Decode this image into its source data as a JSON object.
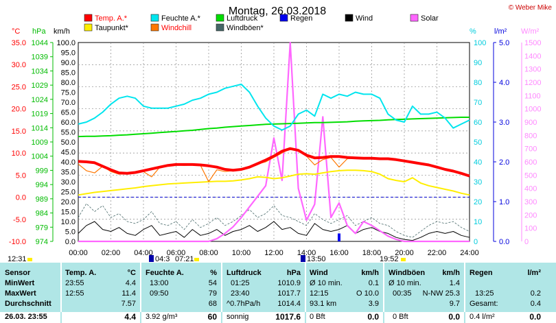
{
  "header": {
    "title": "Montag, 26.03.2018",
    "credit": "© Weber Mike"
  },
  "legend": [
    {
      "label": "Temp. A.*",
      "color": "#ff0000"
    },
    {
      "label": "Feuchte A.*",
      "color": "#00e5ee"
    },
    {
      "label": "Luftdruck",
      "color": "#00dd00"
    },
    {
      "label": "Regen",
      "color": "#0000ee"
    },
    {
      "label": "Wind",
      "color": "#000000"
    },
    {
      "label": "Solar",
      "color": "#ff66ff"
    },
    {
      "label": "Taupunkt*",
      "color": "#ffee00"
    },
    {
      "label": "Windchill",
      "color": "#ff7700"
    },
    {
      "label": "Windböen*",
      "color": "#446666"
    }
  ],
  "axes": {
    "temp_unit": "°C",
    "pressure_unit": "hPa",
    "wind_unit": "km/h",
    "humidity_unit": "%",
    "rain_unit": "l/m²",
    "solar_unit": "W/m²",
    "temp_ticks": [
      "35.0",
      "30.0",
      "25.0",
      "20.0",
      "15.0",
      "10.0",
      "5.0",
      "0.0",
      "-5.0",
      "-10.0"
    ],
    "pressure_ticks": [
      "1044",
      "1039",
      "1034",
      "1029",
      "1024",
      "1019",
      "1014",
      "1009",
      "1004",
      "999",
      "994",
      "989",
      "984",
      "979",
      "974"
    ],
    "wind_ticks": [
      "100.0",
      "95.0",
      "90.0",
      "85.0",
      "80.0",
      "75.0",
      "70.0",
      "65.0",
      "60.0",
      "55.0",
      "50.0",
      "45.0",
      "40.0",
      "35.0",
      "30.0",
      "25.0",
      "20.0",
      "15.0",
      "10.0",
      "5.0",
      "0.0"
    ],
    "humidity_ticks": [
      "100",
      "90",
      "80",
      "70",
      "60",
      "50",
      "40",
      "30",
      "20",
      "10",
      "0"
    ],
    "rain_ticks": [
      "5.0",
      "4.0",
      "3.0",
      "2.0",
      "1.0",
      "0.0"
    ],
    "solar_ticks": [
      "1500",
      "1400",
      "1300",
      "1200",
      "1100",
      "1000",
      "900",
      "800",
      "700",
      "600",
      "500",
      "400",
      "300",
      "200",
      "100",
      "0"
    ],
    "time_ticks": [
      "00:00",
      "02:00",
      "04:00",
      "06:00",
      "08:00",
      "10:00",
      "12:00",
      "14:00",
      "16:00",
      "18:00",
      "20:00",
      "22:00",
      "24:00"
    ]
  },
  "sun_bar": {
    "sunrise_left": "12:31",
    "m1": "04:3",
    "m2": "07:21",
    "m3": "13:50",
    "sunset": "19:52"
  },
  "chart_data": {
    "type": "line",
    "title": "Montag, 26.03.2018",
    "x_range": [
      "00:00",
      "24:00"
    ],
    "x_hours": [
      0,
      0.5,
      1,
      1.5,
      2,
      2.5,
      3,
      3.5,
      4,
      4.5,
      5,
      5.5,
      6,
      6.5,
      7,
      7.5,
      8,
      8.5,
      9,
      9.5,
      10,
      10.5,
      11,
      11.5,
      12,
      12.5,
      13,
      13.5,
      14,
      14.5,
      15,
      15.5,
      16,
      16.5,
      17,
      17.5,
      18,
      18.5,
      19,
      19.5,
      20,
      20.5,
      21,
      21.5,
      22,
      22.5,
      23,
      23.5,
      24
    ],
    "series": [
      {
        "name": "Temp. A.*",
        "unit": "°C",
        "axis": [
          -10,
          35
        ],
        "color": "#ff0000",
        "values": [
          8.1,
          8.0,
          7.8,
          7.0,
          6.2,
          5.5,
          5.4,
          5.6,
          6.0,
          6.4,
          6.8,
          7.2,
          7.4,
          7.4,
          7.4,
          7.3,
          7.1,
          6.8,
          6.3,
          6.1,
          6.3,
          6.8,
          7.6,
          8.4,
          9.3,
          10.4,
          11.0,
          10.6,
          9.5,
          8.9,
          9.0,
          9.2,
          9.2,
          9.0,
          8.9,
          8.8,
          8.8,
          8.7,
          8.7,
          8.5,
          8.2,
          7.9,
          7.6,
          7.3,
          6.8,
          6.3,
          5.9,
          5.4,
          4.8
        ]
      },
      {
        "name": "Windchill",
        "unit": "°C",
        "axis": [
          -10,
          35
        ],
        "color": "#ff7700",
        "values": [
          7.5,
          6.0,
          5.5,
          7.0,
          5.8,
          5.2,
          5.3,
          5.5,
          5.8,
          4.6,
          6.8,
          7.1,
          7.3,
          7.2,
          7.3,
          7.2,
          3.5,
          6.2,
          5.8,
          6.0,
          6.2,
          6.7,
          7.5,
          8.0,
          9.0,
          10.0,
          11.0,
          10.4,
          9.3,
          7.3,
          8.5,
          9.0,
          6.8,
          8.7,
          8.8,
          8.7,
          8.8,
          8.7,
          8.7,
          8.5,
          8.2,
          7.9,
          7.6,
          7.3,
          6.8,
          6.3,
          5.9,
          5.4,
          4.8
        ]
      },
      {
        "name": "Taupunkt*",
        "unit": "°C",
        "axis": [
          -10,
          35
        ],
        "color": "#ffee00",
        "values": [
          0.5,
          0.8,
          1.1,
          1.3,
          1.5,
          1.7,
          1.9,
          2.1,
          2.4,
          2.6,
          2.8,
          3.0,
          3.1,
          3.2,
          3.3,
          3.4,
          3.5,
          3.6,
          3.6,
          3.7,
          3.9,
          4.2,
          4.6,
          4.5,
          4.2,
          4.4,
          4.8,
          5.2,
          5.3,
          5.2,
          5.5,
          5.8,
          6.0,
          6.1,
          6.1,
          6.0,
          5.8,
          5.2,
          4.2,
          3.8,
          3.5,
          4.4,
          3.2,
          2.6,
          2.2,
          1.8,
          1.4,
          0.9,
          0.5
        ]
      },
      {
        "name": "Feuchte A.*",
        "unit": "%",
        "axis": [
          0,
          100
        ],
        "color": "#00e5ee",
        "values": [
          59,
          60,
          62,
          65,
          69,
          72,
          73,
          72,
          68,
          67,
          67,
          67,
          68,
          69,
          71,
          72,
          74,
          75,
          77,
          78,
          79,
          75,
          68,
          62,
          58,
          56,
          58,
          64,
          66,
          63,
          74,
          72,
          74,
          73,
          75,
          74,
          74,
          72,
          64,
          61,
          60,
          68,
          64,
          64,
          65,
          62,
          57,
          59,
          61
        ]
      },
      {
        "name": "Luftdruck",
        "unit": "hPa",
        "axis": [
          974,
          1044
        ],
        "color": "#00dd00",
        "values": [
          1010.9,
          1011.0,
          1011.0,
          1011.1,
          1011.2,
          1011.4,
          1011.5,
          1011.7,
          1011.9,
          1012.1,
          1012.3,
          1012.5,
          1012.7,
          1012.9,
          1013.1,
          1013.4,
          1013.7,
          1013.9,
          1014.2,
          1014.4,
          1014.6,
          1014.8,
          1015.0,
          1015.2,
          1015.3,
          1015.4,
          1015.5,
          1015.6,
          1015.7,
          1015.8,
          1015.8,
          1015.9,
          1016.0,
          1016.1,
          1016.3,
          1016.4,
          1016.5,
          1016.6,
          1016.8,
          1016.9,
          1017.0,
          1017.1,
          1017.2,
          1017.3,
          1017.4,
          1017.5,
          1017.6,
          1017.7,
          1017.7
        ]
      },
      {
        "name": "Wind",
        "unit": "km/h",
        "axis": [
          0,
          100
        ],
        "color": "#000000",
        "values": [
          4,
          8,
          10,
          6,
          5,
          7,
          4,
          3,
          6,
          8,
          3,
          4,
          5,
          2,
          6,
          3,
          4,
          6,
          3,
          5,
          6,
          8,
          5,
          7,
          10,
          6,
          7,
          4,
          3,
          9,
          6,
          5,
          6,
          8,
          4,
          6,
          7,
          5,
          4,
          2,
          1,
          0.5,
          2,
          4,
          5,
          4,
          5,
          3,
          2
        ]
      },
      {
        "name": "Windböen*",
        "unit": "km/h",
        "axis": [
          0,
          100
        ],
        "color": "#446666",
        "values": [
          12,
          19,
          15,
          18,
          12,
          14,
          10,
          9,
          11,
          15,
          9,
          8,
          10,
          6,
          11,
          7,
          9,
          12,
          8,
          10,
          13,
          16,
          12,
          14,
          18,
          13,
          12,
          10,
          8,
          14,
          11,
          9,
          11,
          13,
          8,
          10,
          12,
          9,
          8,
          5,
          3,
          2,
          5,
          8,
          10,
          9,
          10,
          7,
          5
        ]
      },
      {
        "name": "Solar",
        "unit": "W/m²",
        "axis": [
          0,
          1500
        ],
        "color": "#ff66ff",
        "values": [
          0,
          0,
          0,
          0,
          0,
          0,
          0,
          0,
          0,
          0,
          0,
          0,
          0,
          0,
          0,
          0,
          0,
          20,
          60,
          110,
          180,
          260,
          340,
          420,
          780,
          460,
          1520,
          400,
          160,
          280,
          940,
          180,
          290,
          120,
          60,
          150,
          120,
          80,
          40,
          15,
          0,
          0,
          0,
          0,
          0,
          0,
          0,
          0,
          0
        ]
      },
      {
        "name": "Regen",
        "unit": "l/m²",
        "axis": [
          0,
          5
        ],
        "color": "#0000ee",
        "values": [
          0,
          0,
          0,
          0,
          0,
          0,
          0,
          0,
          0,
          0,
          0,
          0,
          0,
          0,
          0,
          0,
          0,
          0,
          0,
          0,
          0,
          0,
          0,
          0,
          0,
          0,
          0,
          0,
          0,
          0,
          0,
          0,
          0.2,
          0,
          0,
          0,
          0,
          0,
          0,
          0,
          0,
          0,
          0,
          0,
          0,
          0,
          0,
          0,
          0
        ]
      }
    ]
  },
  "stats": {
    "rowlabels": {
      "header": "Sensor",
      "min": "MinWert",
      "max": "MaxWert",
      "avg": "Durchschnitt",
      "now": "26.03. 23:55"
    },
    "temp": {
      "title": "Temp. A.",
      "unit": "°C",
      "min_t": "23:55",
      "min_v": "4.4",
      "max_t": "12:55",
      "max_v": "11.4",
      "avg_v": "7.57",
      "now_v": "4.4"
    },
    "hum": {
      "title": "Feuchte A.",
      "unit": "%",
      "min_t": "13:00",
      "min_v": "54",
      "max_t": "09:50",
      "max_v": "79",
      "avg_v": "68",
      "now_l": "3.92 g/m³",
      "now_v": "60"
    },
    "press": {
      "title": "Luftdruck",
      "unit": "hPa",
      "min_t": "01:25",
      "min_v": "1010.9",
      "max_t": "23:40",
      "max_v": "1017.7",
      "avg_l": "^0.7hPa/h",
      "avg_v": "1014.4",
      "now_l": "sonnig",
      "now_v": "1017.6"
    },
    "wind": {
      "title": "Wind",
      "unit": "km/h",
      "min_l": "Ø 10 min.",
      "min_v": "0.1",
      "max_t": "12:15",
      "max_v": "O 10.0",
      "avg_l": "93.1 km",
      "avg_v": "3.9",
      "now_l": "0 Bft",
      "now_v": "0.0"
    },
    "gust": {
      "title": "Windböen",
      "unit": "km/h",
      "min_l": "Ø 10 min.",
      "min_v": "1.4",
      "max_t": "00:35",
      "max_v": "N-NW 25.3",
      "avg_v": "9.7",
      "now_l": "0 Bft",
      "now_v": "0.0"
    },
    "rain": {
      "title": "Regen",
      "unit": "l/m²",
      "max_t": "13:25",
      "max_v": "0.2",
      "avg_l": "Gesamt:",
      "avg_v": "0.4",
      "now_l": "0.4 l/m²",
      "now_v": "0.0"
    }
  }
}
